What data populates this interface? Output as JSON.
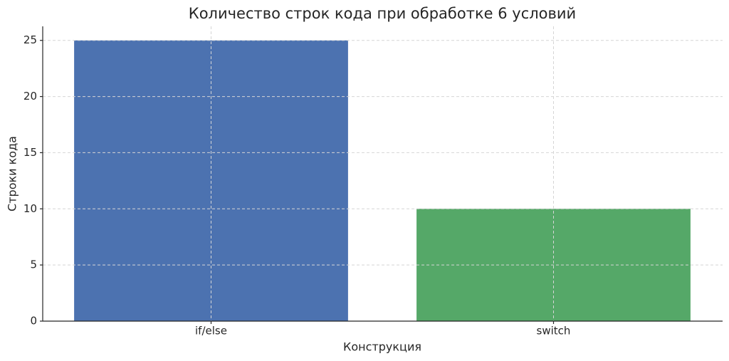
{
  "chart_data": {
    "type": "bar",
    "title": "Количество строк кода при обработке 6 условий",
    "x_label": "Конструкция",
    "y_label": "Строки кода",
    "categories": [
      "if/else",
      "switch"
    ],
    "values": [
      25,
      10
    ],
    "colors": [
      "#4c72b0",
      "#55a868"
    ],
    "ylim": [
      0,
      26.25
    ],
    "yticks": [
      0,
      5,
      10,
      15,
      20,
      25
    ],
    "grid": true
  }
}
